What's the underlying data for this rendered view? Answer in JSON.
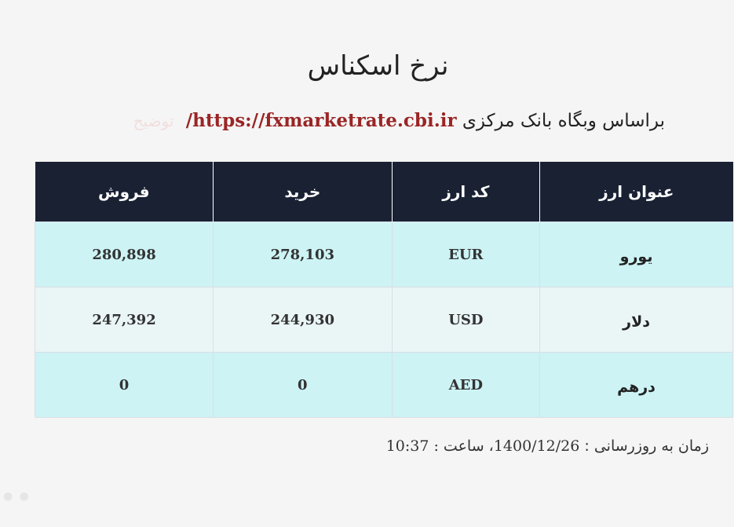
{
  "page": {
    "title": "نرخ اسکناس",
    "subtitle_prefix": "براساس وبگاه بانک مرکزی",
    "source_url": "https://fxmarketrate.cbi.ir/",
    "description_link": "توضیح"
  },
  "table": {
    "headers": [
      "عنوان ارز",
      "کد ارز",
      "خرید",
      "فروش"
    ],
    "rows": [
      {
        "name": "یورو",
        "code": "EUR",
        "buy": "278,103",
        "sell": "280,898"
      },
      {
        "name": "دلار",
        "code": "USD",
        "buy": "244,930",
        "sell": "247,392"
      },
      {
        "name": "درهم",
        "code": "AED",
        "buy": "0",
        "sell": "0"
      }
    ]
  },
  "footer": {
    "update_label": "زمان به روزرسانی :",
    "update_value": "1400/12/26، ساعت : 10:37"
  },
  "colors": {
    "header_bg": "#192133",
    "row_odd_bg": "#cdf3f5",
    "row_even_bg": "#eaf5f6",
    "link_color": "#9a2525"
  }
}
